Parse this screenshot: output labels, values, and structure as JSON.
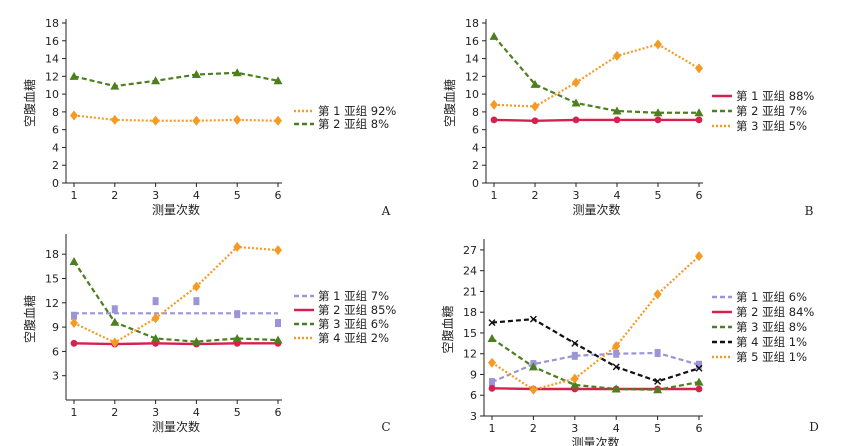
{
  "chart_data": [
    {
      "type": "line",
      "panel_label": "A",
      "xlabel": "测量次数",
      "ylabel": "空腹血糖",
      "x": [
        1,
        2,
        3,
        4,
        5,
        6
      ],
      "xlim": [
        1,
        6
      ],
      "ylim": [
        0,
        18
      ],
      "yticks": [
        0,
        2,
        4,
        6,
        8,
        10,
        12,
        14,
        16,
        18
      ],
      "legend_position": "right",
      "series": [
        {
          "name": "第 1 亚组 92%",
          "values": [
            7.6,
            7.1,
            7.0,
            7.0,
            7.1,
            7.0
          ],
          "color": "#f59a23",
          "style": "dotted",
          "marker": "diamond"
        },
        {
          "name": "第 2 亚组 8%",
          "values": [
            12.0,
            10.9,
            11.5,
            12.2,
            12.4,
            11.5
          ],
          "color": "#4c7f1e",
          "style": "dashed",
          "marker": "triangle"
        }
      ]
    },
    {
      "type": "line",
      "panel_label": "B",
      "xlabel": "测量次数",
      "ylabel": "空腹血糖",
      "x": [
        1,
        2,
        3,
        4,
        5,
        6
      ],
      "xlim": [
        1,
        6
      ],
      "ylim": [
        0,
        18
      ],
      "yticks": [
        0,
        2,
        4,
        6,
        8,
        10,
        12,
        14,
        16,
        18
      ],
      "legend_position": "right",
      "series": [
        {
          "name": "第 1 亚组 88%",
          "values": [
            7.1,
            7.0,
            7.1,
            7.1,
            7.1,
            7.1
          ],
          "color": "#d6204d",
          "style": "solid",
          "marker": "dot"
        },
        {
          "name": "第 2 亚组 7%",
          "values": [
            16.5,
            11.1,
            9.0,
            8.1,
            7.9,
            7.9
          ],
          "color": "#4c7f1e",
          "style": "dashed",
          "marker": "triangle"
        },
        {
          "name": "第 3 亚组 5%",
          "values": [
            8.8,
            8.6,
            11.3,
            14.3,
            15.6,
            12.9
          ],
          "color": "#f59a23",
          "style": "dotted",
          "marker": "diamond"
        }
      ]
    },
    {
      "type": "line",
      "panel_label": "C",
      "xlabel": "测量次数",
      "ylabel": "空腹血糖",
      "x": [
        1,
        2,
        3,
        4,
        5,
        6
      ],
      "xlim": [
        1,
        6
      ],
      "ylim": [
        0,
        20
      ],
      "yticks": [
        3,
        6,
        9,
        12,
        15,
        18
      ],
      "legend_position": "right",
      "series": [
        {
          "name": "第 1 亚组 7%",
          "values": [
            10.7,
            10.7,
            10.7,
            10.7,
            10.7,
            10.7
          ],
          "color": "#9a94d8",
          "style": "dashed",
          "marker": "square",
          "marker_values": [
            10.4,
            11.2,
            12.2,
            12.2,
            10.6,
            9.5
          ]
        },
        {
          "name": "第 2 亚组 85%",
          "values": [
            7.0,
            6.9,
            7.0,
            6.9,
            7.0,
            7.0
          ],
          "color": "#d6204d",
          "style": "solid",
          "marker": "dot"
        },
        {
          "name": "第 3 亚组 6%",
          "values": [
            17.1,
            9.6,
            7.6,
            7.2,
            7.6,
            7.4
          ],
          "color": "#4c7f1e",
          "style": "dashed",
          "marker": "triangle"
        },
        {
          "name": "第 4 亚组 2%",
          "values": [
            9.5,
            7.1,
            10.1,
            14.0,
            18.9,
            18.5
          ],
          "color": "#f59a23",
          "style": "dotted",
          "marker": "diamond"
        }
      ]
    },
    {
      "type": "line",
      "panel_label": "D",
      "xlabel": "测量次数",
      "ylabel": "空腹血糖",
      "x": [
        1,
        2,
        3,
        4,
        5,
        6
      ],
      "xlim": [
        1,
        6
      ],
      "ylim": [
        3,
        28
      ],
      "yticks": [
        3,
        6,
        9,
        12,
        15,
        18,
        21,
        24,
        27
      ],
      "legend_position": "right",
      "series": [
        {
          "name": "第 1 亚组 6%",
          "values": [
            7.9,
            10.5,
            11.7,
            12.0,
            12.1,
            10.4
          ],
          "color": "#9a94d8",
          "style": "dashed",
          "marker": "square"
        },
        {
          "name": "第 2 亚组 84%",
          "values": [
            7.0,
            6.9,
            6.9,
            6.9,
            6.9,
            6.9
          ],
          "color": "#d6204d",
          "style": "solid",
          "marker": "dot"
        },
        {
          "name": "第 3 亚组 8%",
          "values": [
            14.2,
            10.1,
            7.5,
            6.9,
            6.8,
            7.9
          ],
          "color": "#4c7f1e",
          "style": "dashed",
          "marker": "triangle"
        },
        {
          "name": "第 4 亚组 1%",
          "values": [
            16.5,
            17.0,
            13.5,
            10.1,
            8.0,
            9.9
          ],
          "color": "#111111",
          "style": "dashed",
          "marker": "x"
        },
        {
          "name": "第 5 亚组 1%",
          "values": [
            10.7,
            6.8,
            8.4,
            13.1,
            20.6,
            26.1
          ],
          "color": "#f59a23",
          "style": "dotted",
          "marker": "diamond"
        }
      ]
    }
  ]
}
